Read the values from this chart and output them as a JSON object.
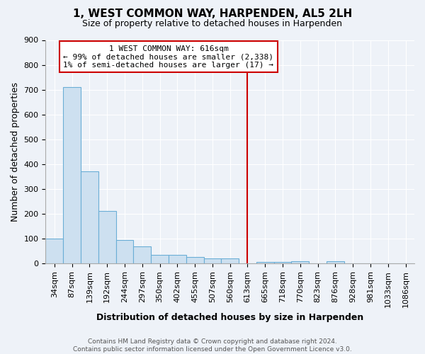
{
  "title": "1, WEST COMMON WAY, HARPENDEN, AL5 2LH",
  "subtitle": "Size of property relative to detached houses in Harpenden",
  "xlabel": "Distribution of detached houses by size in Harpenden",
  "ylabel": "Number of detached properties",
  "footer": "Contains HM Land Registry data © Crown copyright and database right 2024.\nContains public sector information licensed under the Open Government Licence v3.0.",
  "bar_color": "#cde0f0",
  "bar_edge_color": "#6baed6",
  "categories": [
    "34sqm",
    "87sqm",
    "139sqm",
    "192sqm",
    "244sqm",
    "297sqm",
    "350sqm",
    "402sqm",
    "455sqm",
    "507sqm",
    "560sqm",
    "613sqm",
    "665sqm",
    "718sqm",
    "770sqm",
    "823sqm",
    "876sqm",
    "928sqm",
    "981sqm",
    "1033sqm",
    "1086sqm"
  ],
  "values": [
    100,
    710,
    370,
    210,
    95,
    70,
    35,
    35,
    25,
    20,
    20,
    0,
    5,
    5,
    10,
    0,
    10,
    0,
    0,
    0,
    0
  ],
  "ylim": [
    0,
    900
  ],
  "yticks": [
    0,
    100,
    200,
    300,
    400,
    500,
    600,
    700,
    800,
    900
  ],
  "vline_index": 11,
  "annotation_line1": "1 WEST COMMON WAY: 616sqm",
  "annotation_line2": "← 99% of detached houses are smaller (2,338)",
  "annotation_line3": "1% of semi-detached houses are larger (17) →",
  "annotation_color": "#cc0000",
  "background_color": "#eef2f8",
  "grid_color": "#ffffff",
  "title_fontsize": 11,
  "subtitle_fontsize": 9,
  "tick_fontsize": 8,
  "ylabel_fontsize": 9,
  "xlabel_fontsize": 9
}
